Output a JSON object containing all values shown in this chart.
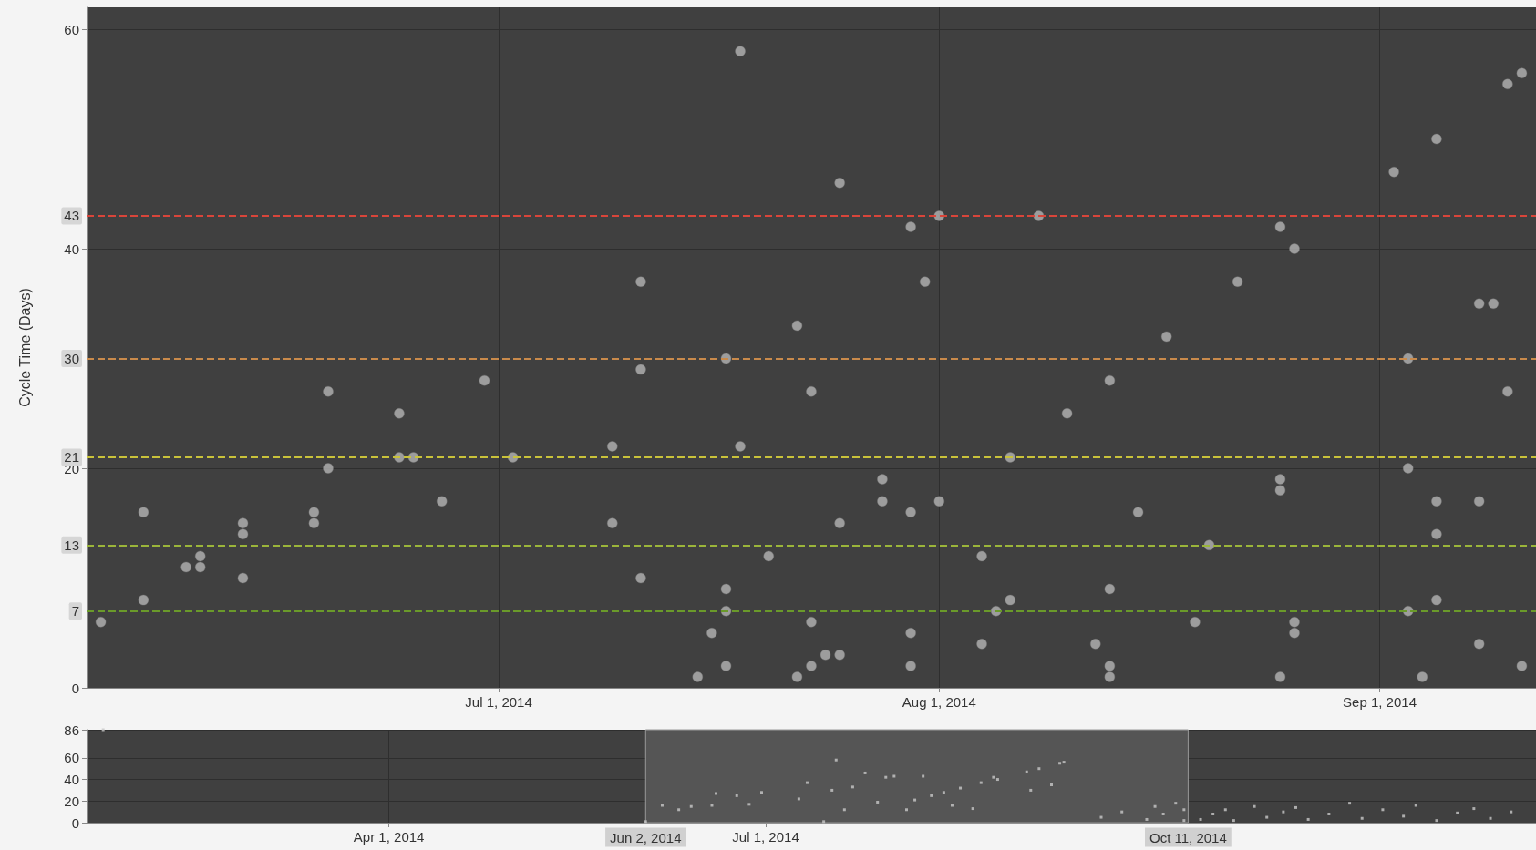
{
  "chart_data": [
    {
      "type": "scatter",
      "ylabel": "Cycle Time (Days)",
      "marker": "circle",
      "grid": true,
      "xlim": [
        "2014-06-02",
        "2014-09-12"
      ],
      "xticks": [
        {
          "value": "2014-07-01",
          "label": "Jul 1, 2014"
        },
        {
          "value": "2014-08-01",
          "label": "Aug 1, 2014"
        },
        {
          "value": "2014-09-01",
          "label": "Sep 1, 2014"
        }
      ],
      "ylim": [
        0,
        62
      ],
      "yticks": [
        0,
        20,
        40,
        60
      ],
      "series": [
        {
          "color": "#b4b4b4",
          "x": [
            "2014-06-03",
            "2014-06-06",
            "2014-06-06",
            "2014-06-09",
            "2014-06-10",
            "2014-06-10",
            "2014-06-13",
            "2014-06-13",
            "2014-06-13",
            "2014-06-18",
            "2014-06-18",
            "2014-06-19",
            "2014-06-19",
            "2014-06-24",
            "2014-06-24",
            "2014-06-25",
            "2014-06-27",
            "2014-06-30",
            "2014-07-02",
            "2014-07-09",
            "2014-07-09",
            "2014-07-11",
            "2014-07-11",
            "2014-07-11",
            "2014-07-15",
            "2014-07-16",
            "2014-07-17",
            "2014-07-17",
            "2014-07-17",
            "2014-07-17",
            "2014-07-18",
            "2014-07-18",
            "2014-07-20",
            "2014-07-22",
            "2014-07-22",
            "2014-07-23",
            "2014-07-23",
            "2014-07-23",
            "2014-07-24",
            "2014-07-25",
            "2014-07-25",
            "2014-07-25",
            "2014-07-28",
            "2014-07-28",
            "2014-07-30",
            "2014-07-30",
            "2014-07-30",
            "2014-07-30",
            "2014-07-31",
            "2014-08-01",
            "2014-08-01",
            "2014-08-04",
            "2014-08-04",
            "2014-08-05",
            "2014-08-06",
            "2014-08-06",
            "2014-08-08",
            "2014-08-10",
            "2014-08-12",
            "2014-08-13",
            "2014-08-13",
            "2014-08-13",
            "2014-08-13",
            "2014-08-15",
            "2014-08-17",
            "2014-08-19",
            "2014-08-20",
            "2014-08-22",
            "2014-08-25",
            "2014-08-25",
            "2014-08-25",
            "2014-08-25",
            "2014-08-26",
            "2014-08-26",
            "2014-08-26",
            "2014-09-02",
            "2014-09-03",
            "2014-09-03",
            "2014-09-03",
            "2014-09-04",
            "2014-09-05",
            "2014-09-05",
            "2014-09-05",
            "2014-09-05",
            "2014-09-08",
            "2014-09-08",
            "2014-09-08",
            "2014-09-09",
            "2014-09-10",
            "2014-09-10",
            "2014-09-11",
            "2014-09-11"
          ],
          "values": [
            6,
            16,
            8,
            11,
            11,
            12,
            15,
            14,
            10,
            16,
            15,
            27,
            20,
            25,
            21,
            21,
            17,
            28,
            21,
            22,
            15,
            37,
            29,
            10,
            1,
            5,
            7,
            9,
            2,
            30,
            58,
            22,
            12,
            1,
            33,
            27,
            6,
            2,
            3,
            3,
            15,
            46,
            19,
            17,
            42,
            16,
            5,
            2,
            37,
            43,
            17,
            12,
            4,
            7,
            8,
            21,
            43,
            25,
            4,
            28,
            9,
            2,
            1,
            16,
            32,
            6,
            13,
            37,
            42,
            19,
            18,
            1,
            40,
            6,
            5,
            47,
            30,
            20,
            7,
            1,
            50,
            17,
            14,
            8,
            35,
            17,
            4,
            35,
            55,
            27,
            56,
            2
          ]
        }
      ],
      "ref_lines": [
        {
          "axis": "y",
          "value": 43,
          "label": "43",
          "color": "#d9453a",
          "line_style": "dashed"
        },
        {
          "axis": "y",
          "value": 30,
          "label": "30",
          "color": "#c98a4b",
          "line_style": "dashed"
        },
        {
          "axis": "y",
          "value": 21,
          "label": "21",
          "color": "#c9c23a",
          "line_style": "dashed"
        },
        {
          "axis": "y",
          "value": 13,
          "label": "13",
          "color": "#9bb53a",
          "line_style": "dashed"
        },
        {
          "axis": "y",
          "value": 7,
          "label": "7",
          "color": "#6a9a2a",
          "line_style": "dashed"
        }
      ]
    },
    {
      "type": "scatter",
      "marker": "square",
      "grid": true,
      "xlim": [
        "2014-01-18",
        "2015-01-03"
      ],
      "xticks": [
        {
          "value": "2014-04-01",
          "label": "Apr 1, 2014"
        },
        {
          "value": "2014-07-01",
          "label": "Jul 1, 2014"
        }
      ],
      "ylim": [
        0,
        86
      ],
      "yticks": [
        0,
        20,
        40,
        60,
        86
      ],
      "bands": [
        {
          "axis": "x",
          "from": "2014-06-02",
          "to": "2014-10-11",
          "color": "#555555"
        }
      ],
      "annotations": [
        "Jun 2, 2014",
        "Oct 11, 2014"
      ],
      "series": [
        {
          "color": "#c8c8c8",
          "x": [
            "2014-01-22",
            "2014-06-02",
            "2014-06-06",
            "2014-06-10",
            "2014-06-13",
            "2014-06-18",
            "2014-06-19",
            "2014-06-24",
            "2014-06-27",
            "2014-06-30",
            "2014-07-09",
            "2014-07-11",
            "2014-07-15",
            "2014-07-17",
            "2014-07-18",
            "2014-07-20",
            "2014-07-22",
            "2014-07-25",
            "2014-07-28",
            "2014-07-30",
            "2014-08-01",
            "2014-08-04",
            "2014-08-06",
            "2014-08-08",
            "2014-08-10",
            "2014-08-13",
            "2014-08-15",
            "2014-08-17",
            "2014-08-20",
            "2014-08-22",
            "2014-08-25",
            "2014-08-26",
            "2014-09-02",
            "2014-09-03",
            "2014-09-05",
            "2014-09-08",
            "2014-09-10",
            "2014-09-11",
            "2014-09-20",
            "2014-09-25",
            "2014-10-01",
            "2014-10-03",
            "2014-10-05",
            "2014-10-08",
            "2014-10-10",
            "2014-10-10",
            "2014-10-14",
            "2014-10-17",
            "2014-10-20",
            "2014-10-22",
            "2014-10-27",
            "2014-10-30",
            "2014-11-03",
            "2014-11-06",
            "2014-11-09",
            "2014-11-14",
            "2014-11-19",
            "2014-11-22",
            "2014-11-27",
            "2014-12-02",
            "2014-12-05",
            "2014-12-10",
            "2014-12-15",
            "2014-12-19",
            "2014-12-23",
            "2014-12-28"
          ],
          "values": [
            86,
            1,
            16,
            12,
            15,
            16,
            27,
            25,
            17,
            28,
            22,
            37,
            1,
            30,
            58,
            12,
            33,
            46,
            19,
            42,
            43,
            12,
            21,
            43,
            25,
            28,
            16,
            32,
            13,
            37,
            42,
            40,
            47,
            30,
            50,
            35,
            55,
            56,
            5,
            10,
            3,
            15,
            8,
            18,
            12,
            2,
            3,
            8,
            12,
            2,
            15,
            5,
            10,
            14,
            3,
            8,
            18,
            4,
            12,
            6,
            16,
            2,
            9,
            13,
            4,
            10
          ]
        }
      ]
    }
  ]
}
